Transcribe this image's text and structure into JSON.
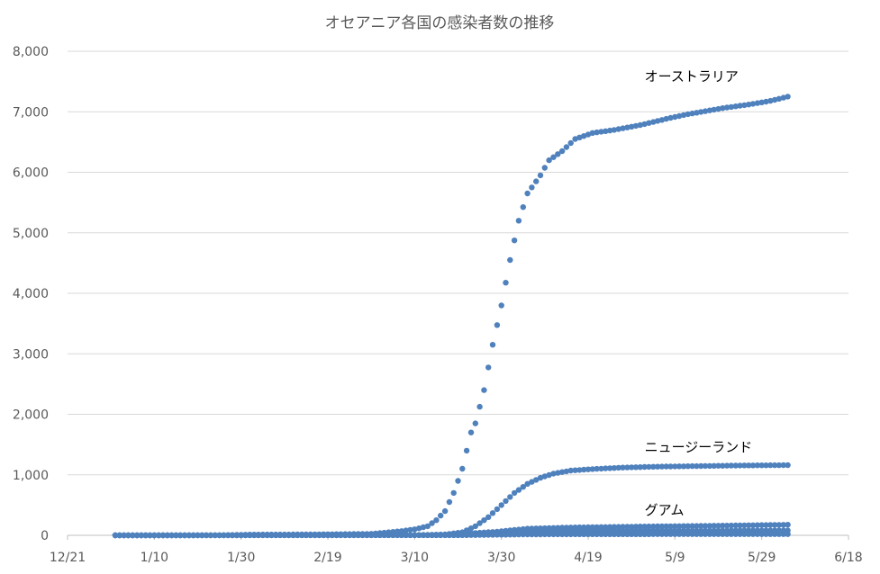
{
  "chart_data": {
    "type": "scatter",
    "title": "オセアニア各国の感染者数の推移",
    "xlabel": "",
    "ylabel": "",
    "xlim": [
      "2019-12-21",
      "2020-06-18"
    ],
    "ylim": [
      0,
      8000
    ],
    "x_ticks": [
      "12/21",
      "1/10",
      "1/30",
      "2/19",
      "3/10",
      "3/30",
      "4/19",
      "5/9",
      "5/29",
      "6/18"
    ],
    "y_ticks": [
      "0",
      "1,000",
      "2,000",
      "3,000",
      "4,000",
      "5,000",
      "6,000",
      "7,000",
      "8,000"
    ],
    "grid": true,
    "legend": "none",
    "marker_color": "#4F81BD",
    "series": [
      {
        "x_start": "2020-01-01",
        "x_end": "2020-06-04",
        "points": [
          [
            "2020-01-01",
            0
          ],
          [
            "2020-01-25",
            1
          ],
          [
            "2020-02-01",
            12
          ],
          [
            "2020-02-15",
            15
          ],
          [
            "2020-02-29",
            25
          ],
          [
            "2020-03-04",
            50
          ],
          [
            "2020-03-07",
            70
          ],
          [
            "2020-03-10",
            100
          ],
          [
            "2020-03-13",
            150
          ],
          [
            "2020-03-15",
            250
          ],
          [
            "2020-03-17",
            400
          ],
          [
            "2020-03-19",
            700
          ],
          [
            "2020-03-21",
            1100
          ],
          [
            "2020-03-23",
            1700
          ],
          [
            "2020-03-24",
            1850
          ],
          [
            "2020-03-26",
            2400
          ],
          [
            "2020-03-28",
            3150
          ],
          [
            "2020-03-30",
            3800
          ],
          [
            "2020-04-01",
            4550
          ],
          [
            "2020-04-03",
            5200
          ],
          [
            "2020-04-05",
            5650
          ],
          [
            "2020-04-08",
            5950
          ],
          [
            "2020-04-10",
            6200
          ],
          [
            "2020-04-13",
            6350
          ],
          [
            "2020-04-16",
            6550
          ],
          [
            "2020-04-20",
            6650
          ],
          [
            "2020-04-25",
            6700
          ],
          [
            "2020-05-01",
            6780
          ],
          [
            "2020-05-08",
            6900
          ],
          [
            "2020-05-12",
            6960
          ],
          [
            "2020-05-20",
            7060
          ],
          [
            "2020-05-26",
            7120
          ],
          [
            "2020-05-31",
            7180
          ],
          [
            "2020-06-04",
            7250
          ]
        ]
      },
      {
        "x_start": "2020-01-01",
        "x_end": "2020-06-04",
        "points": [
          [
            "2020-01-01",
            0
          ],
          [
            "2020-03-10",
            5
          ],
          [
            "2020-03-17",
            15
          ],
          [
            "2020-03-21",
            50
          ],
          [
            "2020-03-24",
            150
          ],
          [
            "2020-03-27",
            300
          ],
          [
            "2020-03-30",
            500
          ],
          [
            "2020-04-02",
            700
          ],
          [
            "2020-04-05",
            850
          ],
          [
            "2020-04-08",
            950
          ],
          [
            "2020-04-11",
            1020
          ],
          [
            "2020-04-15",
            1070
          ],
          [
            "2020-04-20",
            1095
          ],
          [
            "2020-04-27",
            1120
          ],
          [
            "2020-05-05",
            1135
          ],
          [
            "2020-05-15",
            1145
          ],
          [
            "2020-05-25",
            1155
          ],
          [
            "2020-06-04",
            1160
          ]
        ]
      },
      {
        "x_start": "2020-01-01",
        "x_end": "2020-06-04",
        "points": [
          [
            "2020-01-01",
            0
          ],
          [
            "2020-03-15",
            3
          ],
          [
            "2020-03-22",
            30
          ],
          [
            "2020-03-29",
            60
          ],
          [
            "2020-04-05",
            110
          ],
          [
            "2020-04-15",
            130
          ],
          [
            "2020-05-01",
            145
          ],
          [
            "2020-05-20",
            160
          ],
          [
            "2020-06-04",
            175
          ]
        ]
      },
      {
        "x_start": "2020-01-01",
        "x_end": "2020-06-04",
        "points": [
          [
            "2020-01-01",
            0
          ],
          [
            "2020-03-20",
            2
          ],
          [
            "2020-03-30",
            30
          ],
          [
            "2020-04-10",
            65
          ],
          [
            "2020-05-01",
            75
          ],
          [
            "2020-06-04",
            80
          ]
        ]
      },
      {
        "x_start": "2020-01-01",
        "x_end": "2020-06-04",
        "points": [
          [
            "2020-01-01",
            0
          ],
          [
            "2020-03-22",
            3
          ],
          [
            "2020-04-05",
            15
          ],
          [
            "2020-04-20",
            18
          ],
          [
            "2020-06-04",
            20
          ]
        ]
      }
    ],
    "annotations": [
      {
        "text": "オーストラリア",
        "x": "2020-05-02",
        "y": 7580
      },
      {
        "text": "ニュージーランド",
        "x": "2020-05-02",
        "y": 1460
      },
      {
        "text": "グアム",
        "x": "2020-05-02",
        "y": 420
      }
    ]
  }
}
